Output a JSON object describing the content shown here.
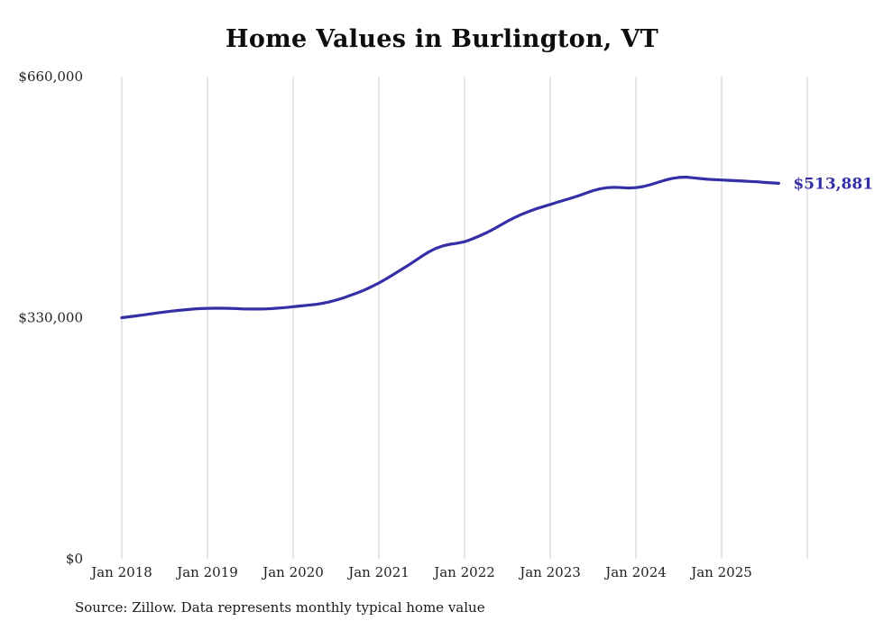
{
  "chart_data": {
    "type": "line",
    "title": "Home Values in Burlington, VT",
    "source": "Source: Zillow. Data represents monthly typical home value",
    "xlabel": "",
    "ylabel": "",
    "ylim": [
      0,
      660000
    ],
    "grid": "vertical-yearly",
    "legend": "none",
    "line_color": "#332FA6",
    "grid_color": "#CCCCCC",
    "end_label": "$513,881",
    "y_ticks": [
      {
        "value": 0,
        "label": "$0"
      },
      {
        "value": 330000,
        "label": "$330,000"
      },
      {
        "value": 660000,
        "label": "$660,000"
      }
    ],
    "x_tick_labels": [
      "Jan 2018",
      "Jan 2019",
      "Jan 2020",
      "Jan 2021",
      "Jan 2022",
      "Jan 2023",
      "Jan 2024",
      "Jan 2025"
    ],
    "x_frequency": "monthly",
    "months": [
      "2018-01",
      "2018-02",
      "2018-03",
      "2018-04",
      "2018-05",
      "2018-06",
      "2018-07",
      "2018-08",
      "2018-09",
      "2018-10",
      "2018-11",
      "2018-12",
      "2019-01",
      "2019-02",
      "2019-03",
      "2019-04",
      "2019-05",
      "2019-06",
      "2019-07",
      "2019-08",
      "2019-09",
      "2019-10",
      "2019-11",
      "2019-12",
      "2020-01",
      "2020-02",
      "2020-03",
      "2020-04",
      "2020-05",
      "2020-06",
      "2020-07",
      "2020-08",
      "2020-09",
      "2020-10",
      "2020-11",
      "2020-12",
      "2021-01",
      "2021-02",
      "2021-03",
      "2021-04",
      "2021-05",
      "2021-06",
      "2021-07",
      "2021-08",
      "2021-09",
      "2021-10",
      "2021-11",
      "2021-12",
      "2022-01",
      "2022-02",
      "2022-03",
      "2022-04",
      "2022-05",
      "2022-06",
      "2022-07",
      "2022-08",
      "2022-09",
      "2022-10",
      "2022-11",
      "2022-12",
      "2023-01",
      "2023-02",
      "2023-03",
      "2023-04",
      "2023-05",
      "2023-06",
      "2023-07",
      "2023-08",
      "2023-09",
      "2023-10",
      "2023-11",
      "2023-12",
      "2024-01",
      "2024-02",
      "2024-03",
      "2024-04",
      "2024-05",
      "2024-06",
      "2024-07",
      "2024-08",
      "2024-09",
      "2024-10",
      "2024-11",
      "2024-12",
      "2025-01",
      "2025-02",
      "2025-03",
      "2025-04",
      "2025-05",
      "2025-06",
      "2025-07",
      "2025-08",
      "2025-09"
    ],
    "values": [
      330000,
      331200,
      332500,
      333800,
      335200,
      336500,
      337800,
      339000,
      340000,
      341000,
      341800,
      342400,
      342800,
      343000,
      343000,
      342800,
      342400,
      342000,
      341800,
      341800,
      342000,
      342500,
      343200,
      344000,
      345000,
      346000,
      347000,
      348000,
      349500,
      351500,
      354000,
      357000,
      360500,
      364000,
      368000,
      372500,
      377500,
      383000,
      389000,
      395000,
      401000,
      407500,
      414000,
      420000,
      425000,
      428500,
      430500,
      432000,
      434000,
      437500,
      441500,
      446000,
      451000,
      456500,
      462000,
      467000,
      471500,
      475500,
      479000,
      482000,
      485000,
      488000,
      491000,
      494000,
      497000,
      500500,
      504000,
      506500,
      508000,
      508500,
      508000,
      507500,
      508000,
      509500,
      512000,
      515000,
      518000,
      520500,
      522000,
      522500,
      521500,
      520500,
      519500,
      519000,
      518500,
      518000,
      517500,
      517000,
      516500,
      516000,
      515200,
      514500,
      513881
    ]
  }
}
